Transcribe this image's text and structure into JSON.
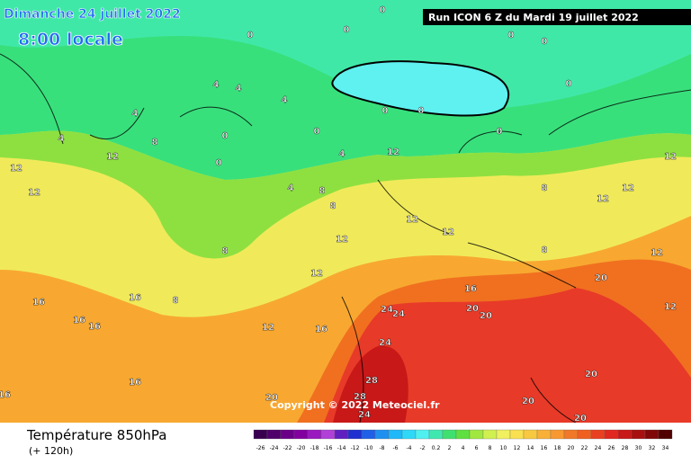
{
  "header": {
    "date": "Dimanche 24 juillet 2022",
    "time": "8:00 locale",
    "run": "Run ICON 6 Z du Mardi 19 juillet 2022"
  },
  "copyright": "Copyright © 2022 Meteociel.fr",
  "footer": {
    "title": "Température 850hPa",
    "lead": "(+ 120h)"
  },
  "colorbar": {
    "labels": [
      "-26",
      "-24",
      "-22",
      "-20",
      "-18",
      "-16",
      "-14",
      "-12",
      "-10",
      "-8",
      "-6",
      "-4",
      "-2",
      "0.2",
      "2",
      "4",
      "6",
      "8",
      "10",
      "12",
      "14",
      "16",
      "18",
      "20",
      "22",
      "24",
      "26",
      "28",
      "30",
      "32",
      "34"
    ],
    "colors": [
      "#3a0050",
      "#50006a",
      "#6a0088",
      "#8200a0",
      "#9a18c0",
      "#b040d8",
      "#6020c0",
      "#2030d0",
      "#2060e8",
      "#2090f0",
      "#20b8f8",
      "#30d8f8",
      "#50f0f0",
      "#40e8b0",
      "#40e070",
      "#60e040",
      "#a0e840",
      "#d0f050",
      "#f0f060",
      "#f8e050",
      "#f8c840",
      "#f8b038",
      "#f89830",
      "#f07828",
      "#f06020",
      "#e84020",
      "#e02820",
      "#c81818",
      "#a81010",
      "#800808",
      "#500000"
    ]
  },
  "contour_labels": [
    "0",
    "0",
    "0",
    "0",
    "0",
    "0",
    "0",
    "0",
    "0",
    "0",
    "0",
    "0",
    "4",
    "4",
    "4",
    "4",
    "4",
    "4",
    "4",
    "8",
    "8",
    "8",
    "8",
    "8",
    "8",
    "8",
    "12",
    "12",
    "12",
    "12",
    "12",
    "12",
    "12",
    "12",
    "12",
    "12",
    "12",
    "12",
    "12",
    "12",
    "16",
    "16",
    "16",
    "16",
    "16",
    "16",
    "16",
    "16",
    "24",
    "24",
    "24",
    "28",
    "28",
    "24",
    "20",
    "20",
    "20",
    "20",
    "20",
    "20",
    "20"
  ]
}
